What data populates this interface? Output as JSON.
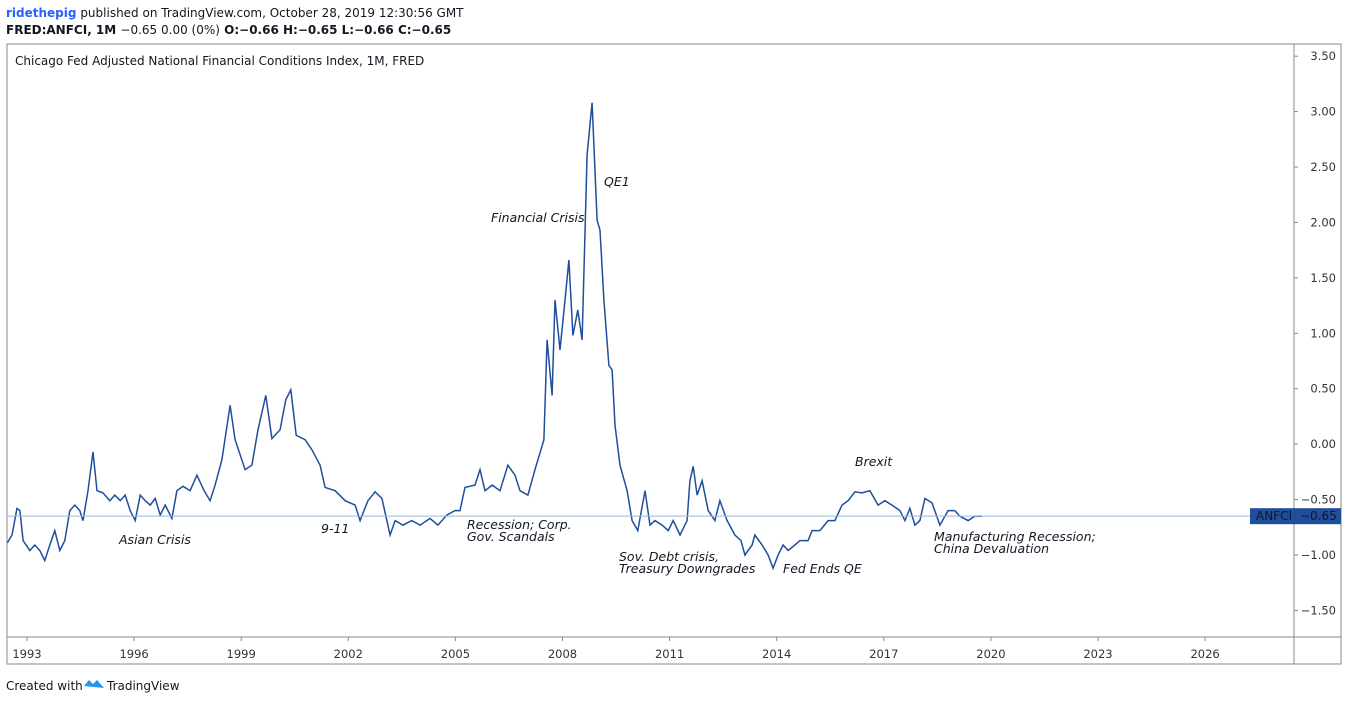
{
  "header": {
    "user": "ridethepig",
    "published": "published on TradingView.com, October 28, 2019 12:30:56 GMT",
    "symbol_line": "FRED:ANFCI, 1M",
    "quote": "−0.65 0.00 (0%)",
    "ohlc": "O:−0.66 H:−0.65 L:−0.66 C:−0.65"
  },
  "footer": {
    "created": "Created with",
    "brand": "TradingView"
  },
  "chart_data": {
    "type": "line",
    "title": "Chicago Fed Adjusted National Financial Conditions Index, 1M, FRED",
    "xlim": [
      1992.44,
      2028.49
    ],
    "xticks": [
      1993,
      1996,
      1999,
      2002,
      2005,
      2008,
      2011,
      2014,
      2017,
      2020,
      2023,
      2026
    ],
    "ylim": [
      -1.74,
      3.61
    ],
    "yticks": [
      {
        "value": 3.5,
        "label": "3.50"
      },
      {
        "value": 3,
        "label": "3.00"
      },
      {
        "value": 2.5,
        "label": "2.50"
      },
      {
        "value": 2,
        "label": "2.00"
      },
      {
        "value": 1.5,
        "label": "1.50"
      },
      {
        "value": 1,
        "label": "1.00"
      },
      {
        "value": 0.5,
        "label": "0.50"
      },
      {
        "value": 0,
        "label": "0.00"
      },
      {
        "value": -0.5,
        "label": "−0.50"
      },
      {
        "value": -1,
        "label": "−1.00"
      },
      {
        "value": -1.5,
        "label": "−1.50"
      }
    ],
    "x": [
      1992.45,
      1992.58,
      1992.72,
      1992.8,
      1992.89,
      1993.08,
      1993.22,
      1993.36,
      1993.5,
      1993.64,
      1993.78,
      1993.92,
      1994.06,
      1994.2,
      1994.34,
      1994.48,
      1994.57,
      1994.71,
      1994.85,
      1994.96,
      1995.13,
      1995.32,
      1995.46,
      1995.61,
      1995.75,
      1995.89,
      1996.03,
      1996.17,
      1996.31,
      1996.45,
      1996.59,
      1996.73,
      1996.87,
      1997.06,
      1997.2,
      1997.37,
      1997.57,
      1997.76,
      1997.96,
      1998.13,
      1998.27,
      1998.46,
      1998.69,
      1998.83,
      1999.11,
      1999.3,
      1999.47,
      1999.69,
      1999.86,
      2000.09,
      2000.25,
      2000.39,
      2000.54,
      2000.79,
      2000.98,
      2001.21,
      2001.35,
      2001.63,
      2001.91,
      2002.19,
      2002.33,
      2002.55,
      2002.75,
      2002.94,
      2003.17,
      2003.31,
      2003.53,
      2003.78,
      2004.01,
      2004.29,
      2004.51,
      2004.76,
      2004.99,
      2005.13,
      2005.27,
      2005.55,
      2005.69,
      2005.83,
      2006.03,
      2006.25,
      2006.47,
      2006.67,
      2006.81,
      2007.03,
      2007.23,
      2007.48,
      2007.57,
      2007.71,
      2007.79,
      2007.93,
      2008.07,
      2008.18,
      2008.29,
      2008.43,
      2008.55,
      2008.69,
      2008.83,
      2008.97,
      2009.05,
      2009.16,
      2009.3,
      2009.39,
      2009.47,
      2009.61,
      2009.81,
      2009.95,
      2010.11,
      2010.31,
      2010.45,
      2010.59,
      2010.79,
      2010.96,
      2011.1,
      2011.29,
      2011.49,
      2011.57,
      2011.66,
      2011.77,
      2011.91,
      2012.08,
      2012.27,
      2012.41,
      2012.61,
      2012.83,
      2013.0,
      2013.11,
      2013.31,
      2013.39,
      2013.59,
      2013.76,
      2013.9,
      2014.04,
      2014.18,
      2014.32,
      2014.51,
      2014.65,
      2014.88,
      2014.99,
      2015.21,
      2015.44,
      2015.63,
      2015.83,
      2016.0,
      2016.19,
      2016.39,
      2016.61,
      2016.84,
      2017.03,
      2017.23,
      2017.45,
      2017.59,
      2017.73,
      2017.87,
      2018.01,
      2018.15,
      2018.35,
      2018.57,
      2018.8,
      2018.99,
      2019.13,
      2019.36,
      2019.55,
      2019.75
    ],
    "series": [
      {
        "name": "ANFCI",
        "color": "#1f4e9c",
        "last_label": "−0.65",
        "values": [
          -0.89,
          -0.82,
          -0.58,
          -0.6,
          -0.87,
          -0.96,
          -0.91,
          -0.96,
          -1.05,
          -0.91,
          -0.78,
          -0.96,
          -0.87,
          -0.6,
          -0.55,
          -0.6,
          -0.69,
          -0.42,
          -0.07,
          -0.42,
          -0.44,
          -0.51,
          -0.46,
          -0.51,
          -0.46,
          -0.6,
          -0.69,
          -0.46,
          -0.51,
          -0.55,
          -0.49,
          -0.64,
          -0.55,
          -0.67,
          -0.42,
          -0.38,
          -0.42,
          -0.28,
          -0.42,
          -0.51,
          -0.37,
          -0.14,
          0.35,
          0.04,
          -0.23,
          -0.19,
          0.13,
          0.44,
          0.05,
          0.13,
          0.4,
          0.49,
          0.08,
          0.04,
          -0.05,
          -0.19,
          -0.39,
          -0.42,
          -0.51,
          -0.55,
          -0.69,
          -0.51,
          -0.43,
          -0.49,
          -0.82,
          -0.69,
          -0.73,
          -0.69,
          -0.73,
          -0.67,
          -0.73,
          -0.64,
          -0.6,
          -0.6,
          -0.39,
          -0.37,
          -0.23,
          -0.42,
          -0.37,
          -0.42,
          -0.19,
          -0.28,
          -0.42,
          -0.46,
          -0.23,
          0.04,
          0.94,
          0.44,
          1.3,
          0.85,
          1.3,
          1.66,
          0.98,
          1.21,
          0.94,
          2.61,
          3.08,
          2.02,
          1.93,
          1.3,
          0.71,
          0.67,
          0.17,
          -0.19,
          -0.42,
          -0.69,
          -0.78,
          -0.42,
          -0.73,
          -0.69,
          -0.73,
          -0.78,
          -0.69,
          -0.82,
          -0.69,
          -0.33,
          -0.2,
          -0.46,
          -0.33,
          -0.6,
          -0.69,
          -0.51,
          -0.69,
          -0.82,
          -0.87,
          -1.0,
          -0.91,
          -0.82,
          -0.91,
          -1.0,
          -1.12,
          -1.0,
          -0.91,
          -0.96,
          -0.91,
          -0.87,
          -0.87,
          -0.78,
          -0.78,
          -0.69,
          -0.69,
          -0.55,
          -0.51,
          -0.43,
          -0.44,
          -0.42,
          -0.55,
          -0.51,
          -0.55,
          -0.6,
          -0.69,
          -0.58,
          -0.73,
          -0.69,
          -0.49,
          -0.53,
          -0.73,
          -0.6,
          -0.6,
          -0.65,
          -0.69,
          -0.65,
          -0.65
        ]
      }
    ],
    "annotations": [
      [
        "Asian Crisis"
      ],
      [
        "9-11"
      ],
      [
        "Recession; Corp.",
        "Gov. Scandals"
      ],
      [
        "Financial Crisis"
      ],
      [
        "QE1"
      ],
      [
        "Sov. Debt crisis,",
        "Treasury Downgrades"
      ],
      [
        "Fed Ends QE"
      ],
      [
        "Brexit"
      ],
      [
        "Manufacturing Recession;",
        "China Devaluation"
      ]
    ]
  }
}
